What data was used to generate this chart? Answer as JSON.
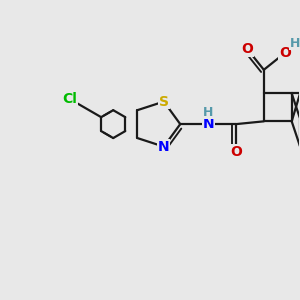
{
  "bg_color": "#e8e8e8",
  "bond_color": "#1a1a1a",
  "atom_colors": {
    "Cl": "#00bb00",
    "S": "#ccaa00",
    "N": "#0000ff",
    "O": "#cc0000",
    "H": "#5599aa",
    "C": "#1a1a1a"
  },
  "figsize": [
    3.0,
    3.0
  ],
  "dpi": 100
}
